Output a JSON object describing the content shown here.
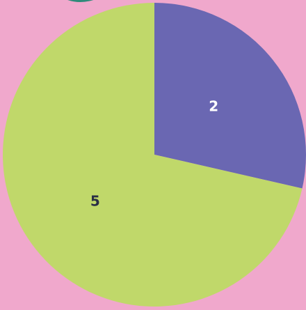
{
  "chart_data": {
    "type": "pie",
    "categories": [
      null,
      null
    ],
    "values": [
      2,
      5
    ],
    "colors": [
      "#6a67b2",
      "#c0d86a"
    ],
    "label_colors": [
      "#ffffff",
      "#2a2f45"
    ]
  }
}
